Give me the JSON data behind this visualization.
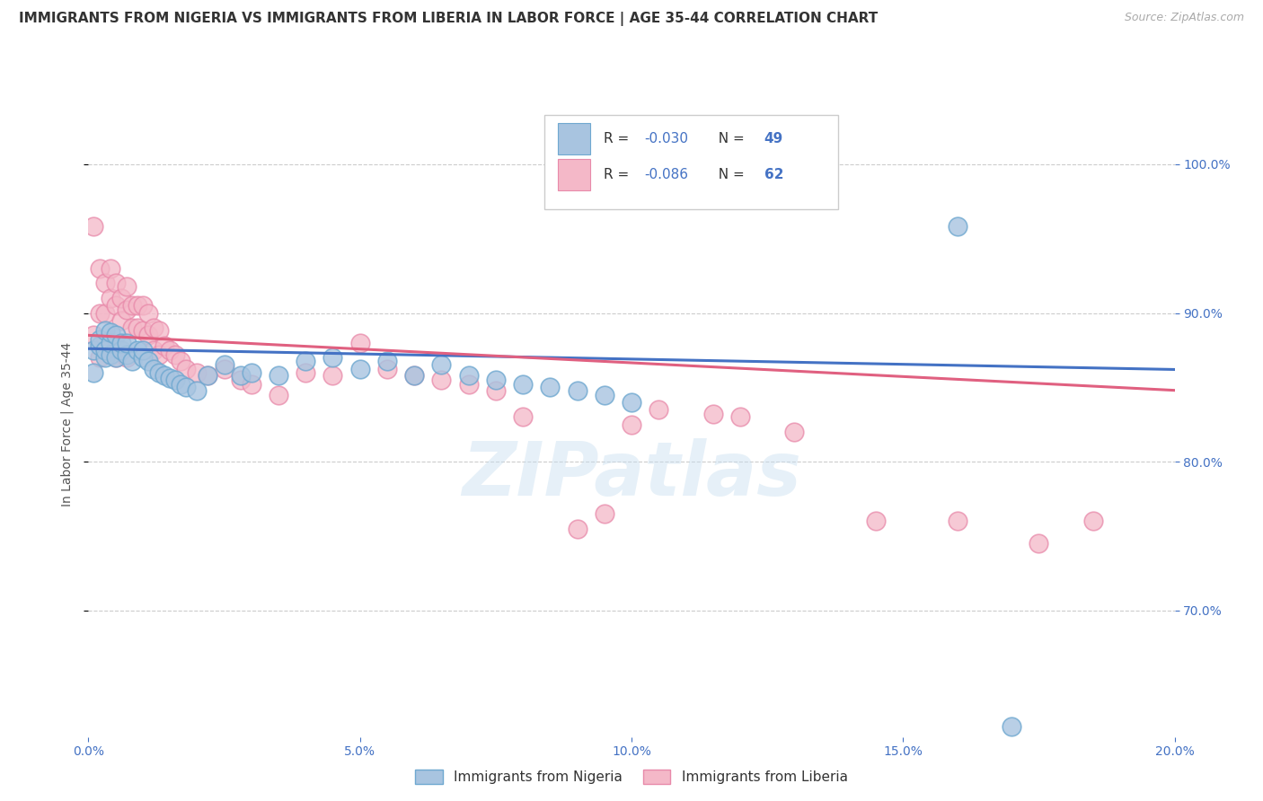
{
  "title": "IMMIGRANTS FROM NIGERIA VS IMMIGRANTS FROM LIBERIA IN LABOR FORCE | AGE 35-44 CORRELATION CHART",
  "source": "Source: ZipAtlas.com",
  "ylabel": "In Labor Force | Age 35-44",
  "legend_nigeria": "Immigrants from Nigeria",
  "legend_liberia": "Immigrants from Liberia",
  "r_nigeria": "-0.030",
  "n_nigeria": "49",
  "r_liberia": "-0.086",
  "n_liberia": "62",
  "xlim": [
    0.0,
    0.2
  ],
  "ylim": [
    0.615,
    1.035
  ],
  "xticks": [
    0.0,
    0.05,
    0.1,
    0.15,
    0.2
  ],
  "yticks": [
    0.7,
    0.8,
    0.9,
    1.0
  ],
  "xticklabels": [
    "0.0%",
    "5.0%",
    "10.0%",
    "15.0%",
    "20.0%"
  ],
  "yticklabels": [
    "70.0%",
    "80.0%",
    "90.0%",
    "100.0%"
  ],
  "color_nigeria": "#a8c4e0",
  "color_liberia": "#f4b8c8",
  "edgecolor_nigeria": "#6fa8d0",
  "edgecolor_liberia": "#e88aaa",
  "line_color_nigeria": "#4472c4",
  "line_color_liberia": "#e06080",
  "background_color": "#ffffff",
  "grid_color": "#cccccc",
  "watermark": "ZIPatlas",
  "nigeria_x": [
    0.001,
    0.001,
    0.002,
    0.002,
    0.003,
    0.003,
    0.003,
    0.004,
    0.004,
    0.004,
    0.005,
    0.005,
    0.006,
    0.006,
    0.007,
    0.007,
    0.008,
    0.009,
    0.01,
    0.01,
    0.011,
    0.012,
    0.013,
    0.014,
    0.015,
    0.016,
    0.017,
    0.018,
    0.02,
    0.022,
    0.025,
    0.028,
    0.03,
    0.035,
    0.04,
    0.045,
    0.05,
    0.055,
    0.06,
    0.065,
    0.07,
    0.075,
    0.08,
    0.085,
    0.09,
    0.095,
    0.1,
    0.16,
    0.17
  ],
  "nigeria_y": [
    0.875,
    0.86,
    0.878,
    0.882,
    0.87,
    0.875,
    0.888,
    0.872,
    0.88,
    0.887,
    0.87,
    0.885,
    0.875,
    0.88,
    0.872,
    0.88,
    0.868,
    0.875,
    0.87,
    0.875,
    0.868,
    0.862,
    0.86,
    0.858,
    0.856,
    0.855,
    0.852,
    0.85,
    0.848,
    0.858,
    0.865,
    0.858,
    0.86,
    0.858,
    0.868,
    0.87,
    0.862,
    0.868,
    0.858,
    0.865,
    0.858,
    0.855,
    0.852,
    0.85,
    0.848,
    0.845,
    0.84,
    0.958,
    0.622
  ],
  "liberia_x": [
    0.001,
    0.001,
    0.002,
    0.002,
    0.002,
    0.003,
    0.003,
    0.003,
    0.004,
    0.004,
    0.004,
    0.005,
    0.005,
    0.005,
    0.006,
    0.006,
    0.007,
    0.007,
    0.007,
    0.008,
    0.008,
    0.009,
    0.009,
    0.01,
    0.01,
    0.011,
    0.011,
    0.012,
    0.012,
    0.013,
    0.013,
    0.014,
    0.015,
    0.016,
    0.017,
    0.018,
    0.02,
    0.022,
    0.025,
    0.028,
    0.03,
    0.035,
    0.04,
    0.045,
    0.05,
    0.055,
    0.06,
    0.065,
    0.07,
    0.075,
    0.08,
    0.09,
    0.095,
    0.1,
    0.105,
    0.115,
    0.12,
    0.13,
    0.145,
    0.16,
    0.175,
    0.185
  ],
  "liberia_y": [
    0.885,
    0.958,
    0.93,
    0.9,
    0.87,
    0.92,
    0.9,
    0.88,
    0.93,
    0.91,
    0.875,
    0.92,
    0.905,
    0.87,
    0.91,
    0.895,
    0.918,
    0.902,
    0.87,
    0.905,
    0.89,
    0.905,
    0.89,
    0.905,
    0.888,
    0.9,
    0.885,
    0.89,
    0.875,
    0.888,
    0.872,
    0.878,
    0.875,
    0.872,
    0.868,
    0.862,
    0.86,
    0.858,
    0.862,
    0.855,
    0.852,
    0.845,
    0.86,
    0.858,
    0.88,
    0.862,
    0.858,
    0.855,
    0.852,
    0.848,
    0.83,
    0.755,
    0.765,
    0.825,
    0.835,
    0.832,
    0.83,
    0.82,
    0.76,
    0.76,
    0.745,
    0.76
  ],
  "nig_line_x0": 0.0,
  "nig_line_x1": 0.2,
  "nig_line_y0": 0.876,
  "nig_line_y1": 0.862,
  "lib_line_x0": 0.0,
  "lib_line_x1": 0.2,
  "lib_line_y0": 0.885,
  "lib_line_y1": 0.848,
  "title_fontsize": 11,
  "axis_fontsize": 10,
  "tick_fontsize": 10,
  "source_fontsize": 9
}
